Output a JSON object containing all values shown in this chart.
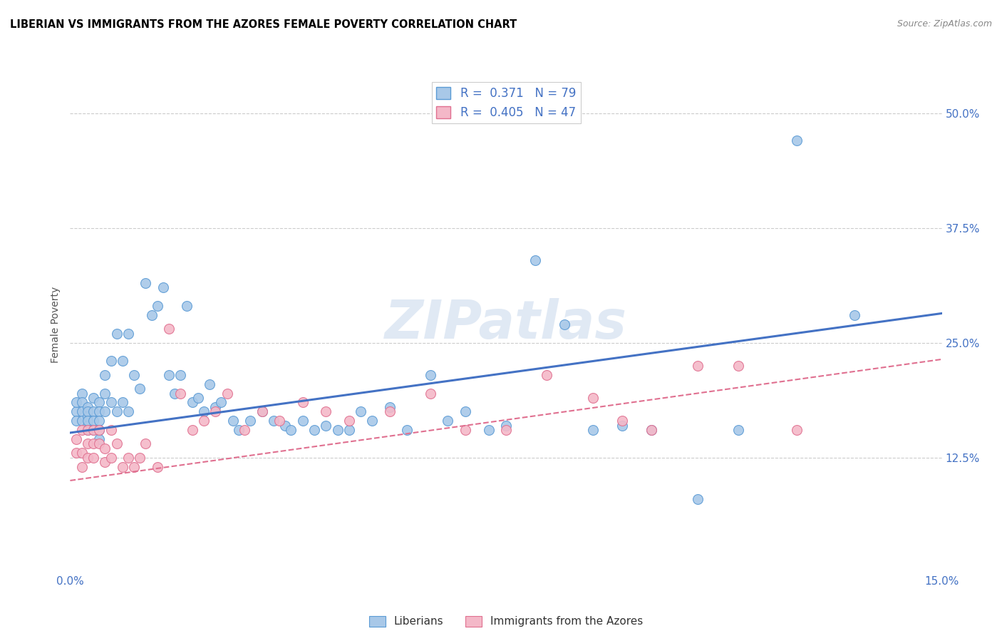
{
  "title": "LIBERIAN VS IMMIGRANTS FROM THE AZORES FEMALE POVERTY CORRELATION CHART",
  "source": "Source: ZipAtlas.com",
  "ylabel": "Female Poverty",
  "ytick_vals": [
    0.125,
    0.25,
    0.375,
    0.5
  ],
  "ytick_labels": [
    "12.5%",
    "25.0%",
    "37.5%",
    "50.0%"
  ],
  "xlim": [
    0.0,
    0.15
  ],
  "ylim": [
    0.0,
    0.54
  ],
  "R_liberian": 0.371,
  "N_liberian": 79,
  "R_azores": 0.405,
  "N_azores": 47,
  "color_liberian_face": "#a8c8e8",
  "color_liberian_edge": "#5b9bd5",
  "color_azores_face": "#f4b8c8",
  "color_azores_edge": "#e07090",
  "color_blue_line": "#4472c4",
  "color_pink_line": "#e07090",
  "watermark": "ZIPatlas",
  "legend_label_liberian": "Liberians",
  "legend_label_azores": "Immigrants from the Azores",
  "liberian_x": [
    0.001,
    0.001,
    0.001,
    0.002,
    0.002,
    0.002,
    0.002,
    0.003,
    0.003,
    0.003,
    0.003,
    0.003,
    0.003,
    0.004,
    0.004,
    0.004,
    0.004,
    0.005,
    0.005,
    0.005,
    0.005,
    0.005,
    0.006,
    0.006,
    0.006,
    0.007,
    0.007,
    0.008,
    0.008,
    0.009,
    0.009,
    0.01,
    0.01,
    0.011,
    0.012,
    0.013,
    0.014,
    0.015,
    0.016,
    0.017,
    0.018,
    0.019,
    0.02,
    0.021,
    0.022,
    0.023,
    0.024,
    0.025,
    0.026,
    0.028,
    0.029,
    0.031,
    0.033,
    0.035,
    0.037,
    0.038,
    0.04,
    0.042,
    0.044,
    0.046,
    0.048,
    0.05,
    0.052,
    0.055,
    0.058,
    0.062,
    0.065,
    0.068,
    0.072,
    0.075,
    0.08,
    0.085,
    0.09,
    0.095,
    0.1,
    0.108,
    0.115,
    0.125,
    0.135
  ],
  "liberian_y": [
    0.175,
    0.185,
    0.165,
    0.195,
    0.185,
    0.175,
    0.165,
    0.18,
    0.17,
    0.16,
    0.155,
    0.175,
    0.165,
    0.19,
    0.175,
    0.165,
    0.155,
    0.185,
    0.175,
    0.165,
    0.155,
    0.145,
    0.215,
    0.195,
    0.175,
    0.23,
    0.185,
    0.26,
    0.175,
    0.23,
    0.185,
    0.26,
    0.175,
    0.215,
    0.2,
    0.315,
    0.28,
    0.29,
    0.31,
    0.215,
    0.195,
    0.215,
    0.29,
    0.185,
    0.19,
    0.175,
    0.205,
    0.18,
    0.185,
    0.165,
    0.155,
    0.165,
    0.175,
    0.165,
    0.16,
    0.155,
    0.165,
    0.155,
    0.16,
    0.155,
    0.155,
    0.175,
    0.165,
    0.18,
    0.155,
    0.215,
    0.165,
    0.175,
    0.155,
    0.16,
    0.34,
    0.27,
    0.155,
    0.16,
    0.155,
    0.08,
    0.155,
    0.47,
    0.28
  ],
  "azores_x": [
    0.001,
    0.001,
    0.002,
    0.002,
    0.002,
    0.003,
    0.003,
    0.003,
    0.004,
    0.004,
    0.004,
    0.005,
    0.005,
    0.006,
    0.006,
    0.007,
    0.007,
    0.008,
    0.009,
    0.01,
    0.011,
    0.012,
    0.013,
    0.015,
    0.017,
    0.019,
    0.021,
    0.023,
    0.025,
    0.027,
    0.03,
    0.033,
    0.036,
    0.04,
    0.044,
    0.048,
    0.055,
    0.062,
    0.068,
    0.075,
    0.082,
    0.09,
    0.095,
    0.1,
    0.108,
    0.115,
    0.125
  ],
  "azores_y": [
    0.145,
    0.13,
    0.155,
    0.13,
    0.115,
    0.155,
    0.14,
    0.125,
    0.155,
    0.14,
    0.125,
    0.155,
    0.14,
    0.135,
    0.12,
    0.155,
    0.125,
    0.14,
    0.115,
    0.125,
    0.115,
    0.125,
    0.14,
    0.115,
    0.265,
    0.195,
    0.155,
    0.165,
    0.175,
    0.195,
    0.155,
    0.175,
    0.165,
    0.185,
    0.175,
    0.165,
    0.175,
    0.195,
    0.155,
    0.155,
    0.215,
    0.19,
    0.165,
    0.155,
    0.225,
    0.225,
    0.155
  ]
}
